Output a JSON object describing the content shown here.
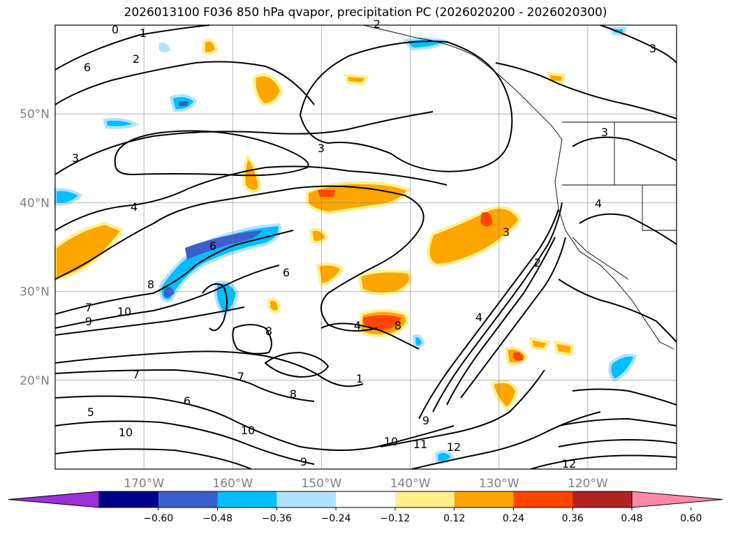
{
  "title": "2026013100 F036 850 hPa qvapor, precipitation PC (2026020200 - 2026020300)",
  "map": {
    "lat_labels": [
      {
        "label": "50°N",
        "lat": 50
      },
      {
        "label": "40°N",
        "lat": 40
      },
      {
        "label": "30°N",
        "lat": 30
      },
      {
        "label": "20°N",
        "lat": 20
      }
    ],
    "lon_labels": [
      {
        "label": "170°W",
        "lon": -170
      },
      {
        "label": "160°W",
        "lon": -160
      },
      {
        "label": "150°W",
        "lon": -150
      },
      {
        "label": "140°W",
        "lon": -140
      },
      {
        "label": "130°W",
        "lon": -130
      },
      {
        "label": "120°W",
        "lon": -120
      }
    ],
    "lat_range": [
      10,
      60
    ],
    "lon_range": [
      -180,
      -110
    ],
    "gridlines": true,
    "contour_color": "#000000",
    "contour_labels": [
      "0",
      "1",
      "2",
      "2",
      "3",
      "3",
      "3",
      "3",
      "4",
      "4",
      "4",
      "5",
      "6",
      "6",
      "6",
      "7",
      "7",
      "7",
      "8",
      "8",
      "8",
      "9",
      "9",
      "9",
      "10",
      "10",
      "10",
      "10",
      "11",
      "12",
      "12",
      "2",
      "8",
      "6",
      "1",
      "4",
      "3"
    ]
  },
  "colorbar": {
    "ticks": [
      "−0.60",
      "−0.48",
      "−0.36",
      "−0.24",
      "−0.12",
      "0.12",
      "0.24",
      "0.36",
      "0.48",
      "0.60"
    ],
    "colors": [
      "#9b30d9",
      "#00008b",
      "#3a5fcd",
      "#00bfff",
      "#b0e2ff",
      "#ffffff",
      "#fff08c",
      "#ffa500",
      "#ff4500",
      "#b22222",
      "#ff88aa"
    ],
    "extend": "both"
  }
}
